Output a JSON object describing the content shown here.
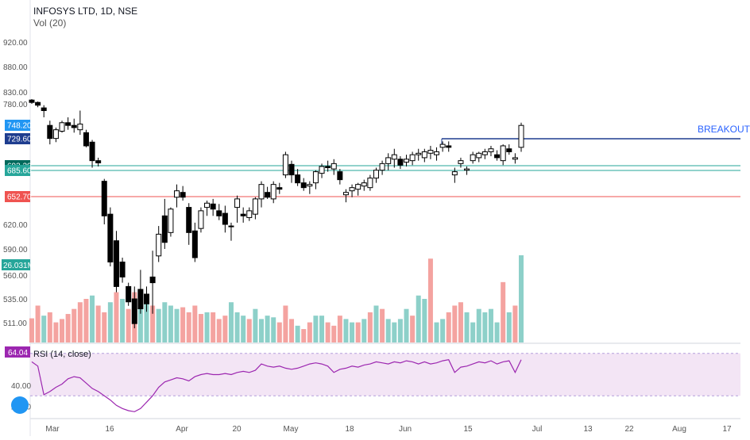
{
  "header": {
    "title": "INFOSYS LTD, 1D, NSE",
    "volume_label": "Vol (20)"
  },
  "annotations": {
    "breakout": "BREAKOUT"
  },
  "colors": {
    "up": "#26a69a",
    "down": "#ef5350",
    "vol_up": "#8dd0c9",
    "vol_down": "#f4a3a0",
    "breakout_line": "#1e3d8f",
    "support_line": "#26a69a",
    "resistance_line": "#ef5350",
    "rsi_line": "#9c27b0",
    "rsi_band": "#f3e5f5"
  },
  "chart_data": [
    {
      "type": "candlestick",
      "title": "INFOSYS LTD, 1D, NSE",
      "y_ticks": [
        "920.00",
        "880.00",
        "830.00",
        "780.00",
        "620.00",
        "590.00",
        "560.00",
        "535.00",
        "511.00"
      ],
      "x_ticks": [
        "Mar",
        "16",
        "Apr",
        "20",
        "May",
        "18",
        "Jun",
        "15",
        "Jul",
        "13",
        "22",
        "Aug",
        "17"
      ],
      "price_labels": [
        {
          "value": "748.20",
          "color": "#2196f3"
        },
        {
          "value": "729.60",
          "color": "#1e3d8f"
        },
        {
          "value": "693.20",
          "color": "#00695c"
        },
        {
          "value": "685.60",
          "color": "#26a69a"
        },
        {
          "value": "652.70",
          "color": "#ef5350"
        }
      ],
      "volume_label": "26.031M",
      "horizontal_lines": [
        {
          "price": 729.6,
          "label": "BREAKOUT"
        },
        {
          "price": 693.2
        },
        {
          "price": 685.6
        },
        {
          "price": 652.7
        }
      ],
      "candles": [
        [
          796,
          800,
          780,
          786
        ],
        [
          786,
          790,
          775,
          778
        ],
        [
          774,
          778,
          760,
          770
        ],
        [
          748,
          755,
          722,
          730
        ],
        [
          730,
          745,
          725,
          742
        ],
        [
          740,
          755,
          738,
          752
        ],
        [
          752,
          760,
          742,
          748
        ],
        [
          748,
          758,
          738,
          745
        ],
        [
          742,
          770,
          735,
          750
        ],
        [
          738,
          742,
          718,
          720
        ],
        [
          725,
          728,
          690,
          700
        ],
        [
          700,
          704,
          692,
          697
        ],
        [
          672,
          675,
          620,
          630
        ],
        [
          632,
          640,
          570,
          575
        ],
        [
          600,
          612,
          542,
          548
        ],
        [
          575,
          580,
          552,
          558
        ],
        [
          548,
          552,
          528,
          532
        ],
        [
          535,
          548,
          505,
          510
        ],
        [
          545,
          566,
          520,
          525
        ],
        [
          540,
          548,
          522,
          530
        ],
        [
          558,
          588,
          520,
          552
        ],
        [
          582,
          618,
          575,
          608
        ],
        [
          630,
          650,
          590,
          598
        ],
        [
          610,
          640,
          605,
          638
        ],
        [
          652,
          668,
          640,
          660
        ],
        [
          658,
          666,
          648,
          652
        ],
        [
          640,
          645,
          595,
          610
        ],
        [
          612,
          622,
          575,
          580
        ],
        [
          615,
          640,
          610,
          636
        ],
        [
          640,
          648,
          630,
          645
        ],
        [
          644,
          650,
          630,
          638
        ],
        [
          636,
          644,
          625,
          630
        ],
        [
          633,
          642,
          610,
          620
        ],
        [
          618,
          622,
          600,
          618
        ],
        [
          640,
          654,
          622,
          650
        ],
        [
          632,
          640,
          622,
          630
        ],
        [
          628,
          640,
          624,
          636
        ],
        [
          632,
          652,
          626,
          650
        ],
        [
          650,
          672,
          640,
          668
        ],
        [
          658,
          665,
          650,
          652
        ],
        [
          650,
          672,
          645,
          668
        ],
        [
          664,
          670,
          656,
          662
        ],
        [
          680,
          712,
          676,
          708
        ],
        [
          695,
          700,
          670,
          680
        ],
        [
          680,
          688,
          666,
          670
        ],
        [
          670,
          676,
          660,
          664
        ],
        [
          666,
          672,
          656,
          668
        ],
        [
          670,
          686,
          662,
          684
        ],
        [
          682,
          696,
          676,
          692
        ],
        [
          692,
          700,
          684,
          690
        ],
        [
          688,
          702,
          680,
          696
        ],
        [
          684,
          688,
          668,
          674
        ],
        [
          655,
          662,
          646,
          658
        ],
        [
          660,
          668,
          652,
          664
        ],
        [
          662,
          670,
          654,
          668
        ],
        [
          666,
          674,
          660,
          670
        ],
        [
          664,
          680,
          660,
          676
        ],
        [
          676,
          690,
          670,
          686
        ],
        [
          686,
          700,
          680,
          696
        ],
        [
          696,
          710,
          686,
          704
        ],
        [
          702,
          716,
          690,
          708
        ],
        [
          702,
          706,
          688,
          694
        ],
        [
          698,
          708,
          692,
          702
        ],
        [
          700,
          712,
          694,
          708
        ],
        [
          708,
          716,
          700,
          710
        ],
        [
          704,
          716,
          698,
          712
        ],
        [
          710,
          720,
          702,
          714
        ],
        [
          708,
          718,
          700,
          712
        ],
        [
          718,
          726,
          712,
          722
        ],
        [
          720,
          726,
          712,
          718
        ],
        [
          680,
          690,
          670,
          684
        ],
        [
          696,
          704,
          690,
          700
        ],
        [
          686,
          692,
          680,
          688
        ],
        [
          700,
          712,
          696,
          708
        ],
        [
          704,
          712,
          698,
          710
        ],
        [
          708,
          716,
          702,
          712
        ],
        [
          712,
          720,
          706,
          716
        ],
        [
          708,
          714,
          700,
          704
        ],
        [
          700,
          722,
          694,
          720
        ],
        [
          716,
          722,
          708,
          712
        ],
        [
          702,
          710,
          696,
          704
        ],
        [
          718,
          752,
          712,
          748
        ]
      ],
      "volume": [
        {
          "v": 7.2,
          "up": false
        },
        {
          "v": 11,
          "up": false
        },
        {
          "v": 8,
          "up": true
        },
        {
          "v": 9,
          "up": false
        },
        {
          "v": 6,
          "up": false
        },
        {
          "v": 7,
          "up": false
        },
        {
          "v": 8.5,
          "up": false
        },
        {
          "v": 10,
          "up": false
        },
        {
          "v": 12,
          "up": false
        },
        {
          "v": 13,
          "up": false
        },
        {
          "v": 14,
          "up": true
        },
        {
          "v": 11,
          "up": false
        },
        {
          "v": 9,
          "up": false
        },
        {
          "v": 12,
          "up": true
        },
        {
          "v": 15,
          "up": false
        },
        {
          "v": 13,
          "up": true
        },
        {
          "v": 10,
          "up": false
        },
        {
          "v": 15,
          "up": false
        },
        {
          "v": 12,
          "up": true
        },
        {
          "v": 14,
          "up": true
        },
        {
          "v": 11,
          "up": false
        },
        {
          "v": 10,
          "up": true
        },
        {
          "v": 12,
          "up": true
        },
        {
          "v": 11,
          "up": true
        },
        {
          "v": 10,
          "up": true
        },
        {
          "v": 10.5,
          "up": false
        },
        {
          "v": 9,
          "up": false
        },
        {
          "v": 11,
          "up": false
        },
        {
          "v": 8.5,
          "up": false
        },
        {
          "v": 9,
          "up": true
        },
        {
          "v": 9,
          "up": false
        },
        {
          "v": 7,
          "up": false
        },
        {
          "v": 8,
          "up": false
        },
        {
          "v": 12,
          "up": true
        },
        {
          "v": 9,
          "up": true
        },
        {
          "v": 8,
          "up": true
        },
        {
          "v": 7,
          "up": false
        },
        {
          "v": 10,
          "up": true
        },
        {
          "v": 7,
          "up": true
        },
        {
          "v": 8,
          "up": true
        },
        {
          "v": 7.5,
          "up": true
        },
        {
          "v": 6,
          "up": false
        },
        {
          "v": 11,
          "up": false
        },
        {
          "v": 7,
          "up": false
        },
        {
          "v": 5,
          "up": true
        },
        {
          "v": 4,
          "up": false
        },
        {
          "v": 6,
          "up": false
        },
        {
          "v": 8,
          "up": true
        },
        {
          "v": 8,
          "up": true
        },
        {
          "v": 6,
          "up": false
        },
        {
          "v": 5,
          "up": false
        },
        {
          "v": 8,
          "up": false
        },
        {
          "v": 7,
          "up": true
        },
        {
          "v": 6,
          "up": true
        },
        {
          "v": 6,
          "up": false
        },
        {
          "v": 7,
          "up": true
        },
        {
          "v": 9,
          "up": false
        },
        {
          "v": 11,
          "up": true
        },
        {
          "v": 10,
          "up": false
        },
        {
          "v": 7,
          "up": true
        },
        {
          "v": 6,
          "up": true
        },
        {
          "v": 7,
          "up": true
        },
        {
          "v": 10,
          "up": true
        },
        {
          "v": 8,
          "up": false
        },
        {
          "v": 14,
          "up": true
        },
        {
          "v": 13,
          "up": true
        },
        {
          "v": 25,
          "up": false
        },
        {
          "v": 6,
          "up": true
        },
        {
          "v": 7,
          "up": true
        },
        {
          "v": 9,
          "up": false
        },
        {
          "v": 11,
          "up": false
        },
        {
          "v": 12,
          "up": false
        },
        {
          "v": 9,
          "up": true
        },
        {
          "v": 6,
          "up": true
        },
        {
          "v": 10,
          "up": true
        },
        {
          "v": 9,
          "up": true
        },
        {
          "v": 10,
          "up": true
        },
        {
          "v": 6,
          "up": true
        },
        {
          "v": 18,
          "up": false
        },
        {
          "v": 9,
          "up": true
        },
        {
          "v": 11,
          "up": false
        },
        {
          "v": 26,
          "up": true
        }
      ]
    },
    {
      "type": "line",
      "title": "RSI (14, close)",
      "y_ticks": [
        "40.00",
        "20.00"
      ],
      "current_label": "64.04",
      "ylim": [
        10,
        75
      ],
      "band": [
        30,
        70
      ],
      "values": [
        62,
        58,
        31,
        34,
        38,
        41,
        46,
        48,
        47,
        42,
        37,
        34,
        30,
        26,
        21,
        18,
        16,
        15,
        18,
        24,
        30,
        38,
        43,
        45,
        47,
        46,
        44,
        48,
        50,
        51,
        50,
        50,
        51,
        50,
        52,
        53,
        52,
        54,
        60,
        58,
        57,
        58,
        56,
        55,
        56,
        58,
        60,
        61,
        60,
        58,
        52,
        55,
        56,
        58,
        57,
        59,
        60,
        62,
        61,
        60,
        62,
        61,
        63,
        62,
        60,
        62,
        60,
        61,
        63,
        64,
        52,
        57,
        58,
        60,
        62,
        61,
        63,
        60,
        62,
        63,
        52,
        64
      ]
    }
  ]
}
